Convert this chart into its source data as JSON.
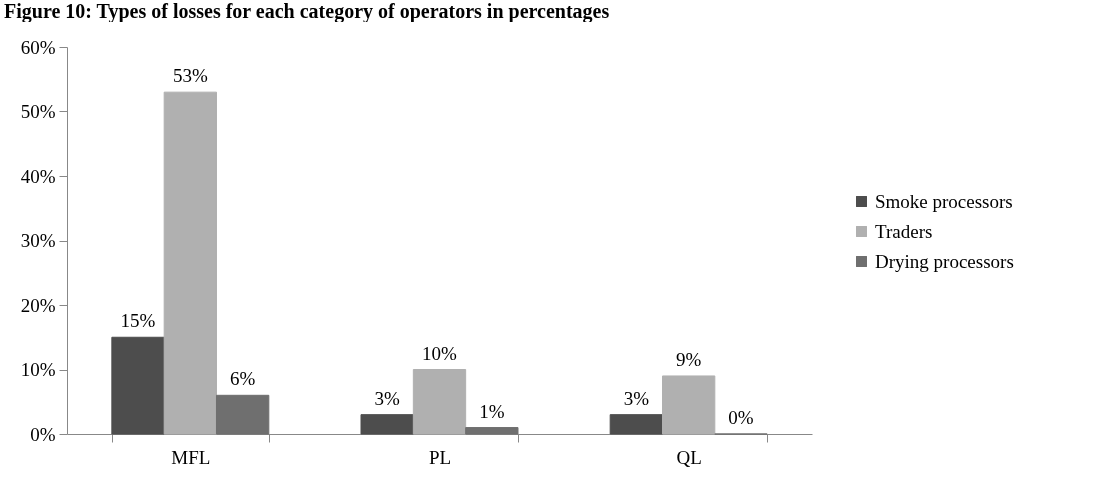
{
  "chart_data": {
    "type": "bar",
    "title": "Figure 10: Types of losses for each category of operators in percentages",
    "categories": [
      "MFL",
      "PL",
      "QL"
    ],
    "series": [
      {
        "name": "Smoke processors",
        "color": "#4d4d4d",
        "values": [
          15,
          3,
          3
        ],
        "value_labels": [
          "15%",
          "3%",
          "3%"
        ]
      },
      {
        "name": "Traders",
        "color": "#b0b0b0",
        "values": [
          53,
          10,
          9
        ],
        "value_labels": [
          "53%",
          "10%",
          "9%"
        ]
      },
      {
        "name": "Drying processors",
        "color": "#6f6f6f",
        "values": [
          6,
          1,
          0
        ],
        "value_labels": [
          "6%",
          "1%",
          "0%"
        ]
      }
    ],
    "ylim": [
      0,
      60
    ],
    "yticks": [
      {
        "value": 0,
        "label": "0%"
      },
      {
        "value": 10,
        "label": "10%"
      },
      {
        "value": 20,
        "label": "20%"
      },
      {
        "value": 30,
        "label": "30%"
      },
      {
        "value": 40,
        "label": "40%"
      },
      {
        "value": 50,
        "label": "50%"
      },
      {
        "value": 60,
        "label": "60%"
      }
    ],
    "grid": false,
    "legend": "right"
  }
}
